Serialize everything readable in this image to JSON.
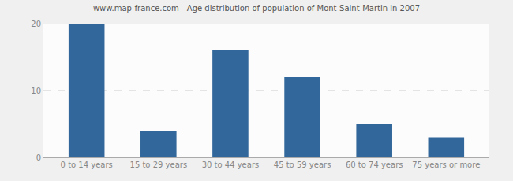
{
  "chart_data": {
    "type": "bar",
    "title": "www.map-france.com - Age distribution of population of Mont-Saint-Martin in 2007",
    "categories": [
      "0 to 14 years",
      "15 to 29 years",
      "30 to 44 years",
      "45 to 59 years",
      "60 to 74 years",
      "75 years or more"
    ],
    "values": [
      20,
      4,
      16,
      12,
      5,
      3
    ],
    "color": "#31679a",
    "ylim": [
      0,
      20
    ],
    "yticks": [
      0,
      10,
      20
    ],
    "grid": true
  }
}
